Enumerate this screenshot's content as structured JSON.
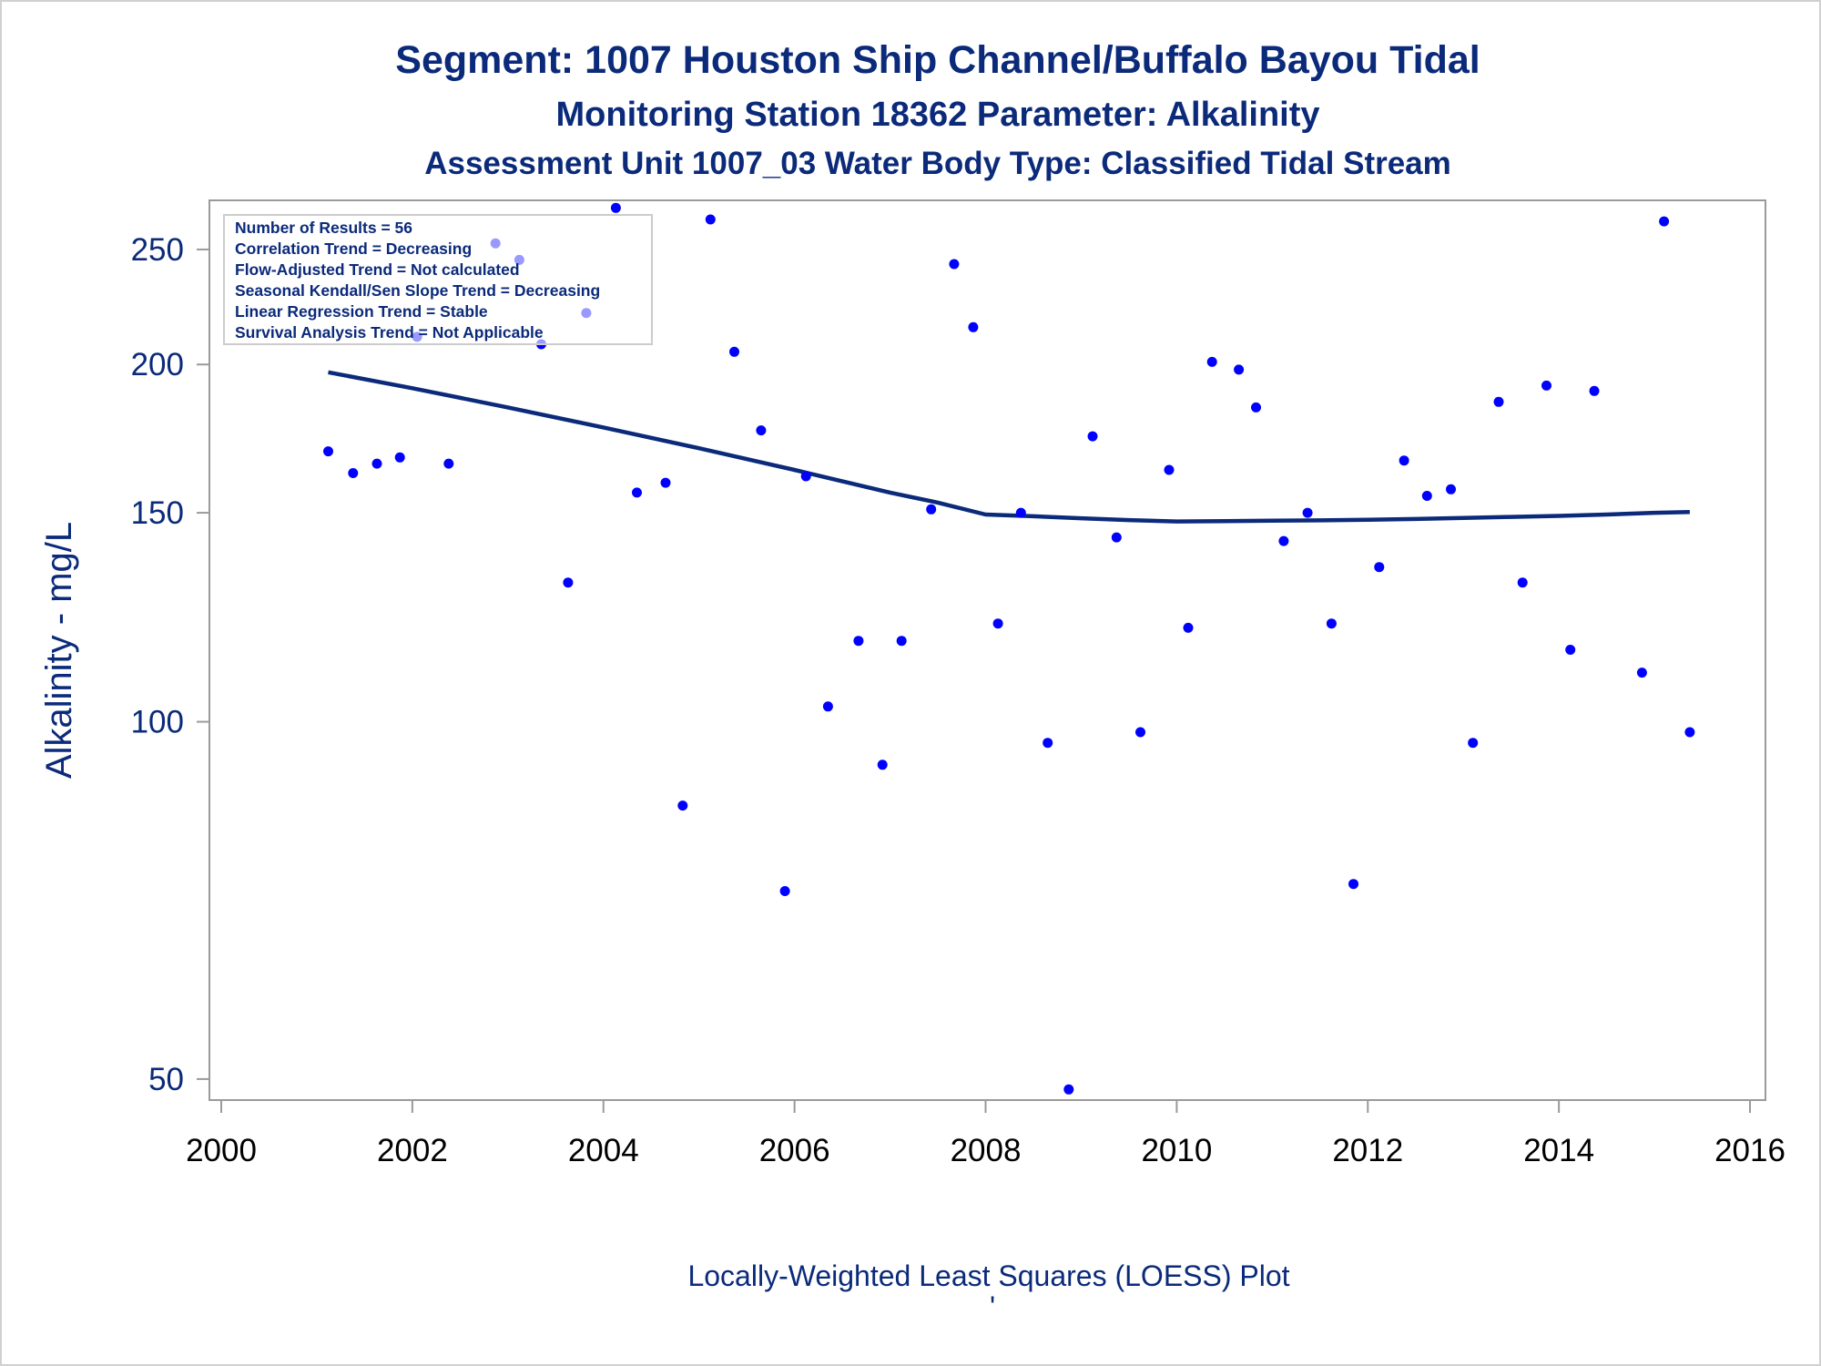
{
  "titles": {
    "line1": "Segment: 1007  Houston Ship Channel/Buffalo Bayou Tidal",
    "line2": "Monitoring Station 18362 Parameter: Alkalinity",
    "line3": "Assessment Unit 1007_03   Water Body Type: Classified Tidal Stream"
  },
  "footnote": "Locally-Weighted Least Squares (LOESS) Plot",
  "footnote_mark": "'",
  "stats_box": [
    "Number of Results = 56",
    "Correlation Trend = Decreasing",
    "Flow-Adjusted Trend = Not calculated",
    "Seasonal Kendall/Sen Slope Trend = Decreasing",
    "Linear Regression Trend = Stable",
    "Survival Analysis Trend = Not Applicable"
  ],
  "colors": {
    "text": "#0b2a7a",
    "points": "#0000ff",
    "loess": "#0b2a7a",
    "axis": "#9a9a9a"
  },
  "chart_data": {
    "type": "scatter",
    "ylabel": "Alkalinity - mg/L",
    "xlim": [
      2000,
      2016
    ],
    "ylim": [
      48,
      275
    ],
    "yscale": "log",
    "xticks": [
      2000,
      2002,
      2004,
      2006,
      2008,
      2010,
      2012,
      2014,
      2016
    ],
    "yticks": [
      50,
      100,
      150,
      200,
      250
    ],
    "grid": false,
    "legend": "top-left",
    "points": {
      "x": [
        2001.12,
        2001.38,
        2001.63,
        2001.87,
        2002.05,
        2002.38,
        2002.87,
        2003.12,
        2003.35,
        2003.63,
        2003.82,
        2004.13,
        2004.35,
        2004.65,
        2004.83,
        2005.12,
        2005.37,
        2005.65,
        2005.9,
        2006.12,
        2006.35,
        2006.67,
        2006.92,
        2007.12,
        2007.43,
        2007.67,
        2007.87,
        2008.13,
        2008.37,
        2008.65,
        2008.87,
        2009.12,
        2009.37,
        2009.62,
        2009.92,
        2010.12,
        2010.37,
        2010.65,
        2010.83,
        2011.12,
        2011.37,
        2011.62,
        2011.85,
        2012.12,
        2012.38,
        2012.62,
        2012.87,
        2013.1,
        2013.37,
        2013.62,
        2013.87,
        2014.12,
        2014.37,
        2014.87,
        2015.1,
        2015.37
      ],
      "y": [
        169,
        162,
        165,
        167,
        211,
        165,
        253,
        245,
        208,
        131,
        221,
        271,
        156,
        159,
        85,
        265,
        205,
        176,
        72,
        161,
        103,
        117,
        92,
        117,
        151,
        243,
        215,
        121,
        150,
        96,
        49,
        174,
        143,
        98,
        163,
        120,
        201,
        198,
        184,
        142,
        150,
        121,
        73,
        135,
        166,
        155,
        157,
        96,
        186,
        131,
        192,
        115,
        190,
        110,
        264,
        98
      ]
    },
    "loess": {
      "x": [
        2001.12,
        2002,
        2003,
        2004,
        2005,
        2006,
        2007,
        2007.5,
        2008,
        2008.5,
        2009,
        2009.5,
        2010,
        2010.5,
        2011,
        2011.5,
        2012,
        2012.5,
        2013,
        2013.5,
        2014,
        2014.5,
        2015,
        2015.37
      ],
      "y": [
        197,
        191,
        184,
        177,
        170,
        163,
        156,
        153,
        149.5,
        149,
        148.4,
        147.9,
        147.5,
        147.6,
        147.7,
        147.8,
        148,
        148.2,
        148.5,
        148.8,
        149.1,
        149.5,
        150,
        150.2
      ]
    }
  }
}
